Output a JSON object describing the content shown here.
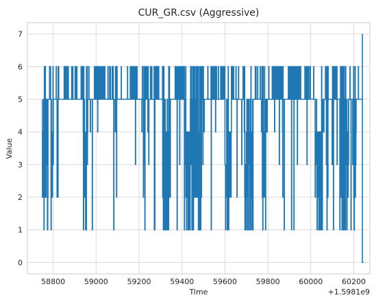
{
  "chart_data": {
    "type": "line",
    "title": "CUR_GR.csv (Aggressive)",
    "xlabel": "Time",
    "ylabel": "Value",
    "x_offset_label": "+1.5981e9",
    "xlim": [
      58680,
      60275
    ],
    "ylim": [
      -0.35,
      7.35
    ],
    "xticks": [
      "58800",
      "59000",
      "59200",
      "59400",
      "59600",
      "59800",
      "60000",
      "60200"
    ],
    "yticks": [
      "0",
      "1",
      "2",
      "3",
      "4",
      "5",
      "6",
      "7"
    ],
    "grid": true,
    "legend": "none",
    "series": [
      {
        "color": "#1f77b4",
        "x_start": 58750,
        "x_end": 60240,
        "baseline": 5,
        "dense_low_blocks": [
          [
            58750,
            58775
          ],
          [
            58790,
            58800
          ],
          [
            58940,
            58960
          ],
          [
            59310,
            59345
          ],
          [
            59410,
            59490
          ],
          [
            59600,
            59630
          ],
          [
            59690,
            59730
          ],
          [
            59770,
            59790
          ],
          [
            60020,
            60060
          ],
          [
            60135,
            60175
          ],
          [
            60195,
            60210
          ]
        ],
        "high_blocks": [
          [
            58810,
            58825
          ],
          [
            58850,
            58870
          ],
          [
            58900,
            58910
          ],
          [
            58930,
            58950
          ],
          [
            58990,
            59040
          ],
          [
            59090,
            59100
          ],
          [
            59160,
            59190
          ],
          [
            59210,
            59240
          ],
          [
            59270,
            59290
          ],
          [
            59370,
            59420
          ],
          [
            59480,
            59500
          ],
          [
            59580,
            59640
          ],
          [
            59680,
            59700
          ],
          [
            59770,
            59780
          ],
          [
            59830,
            59870
          ],
          [
            59900,
            59940
          ],
          [
            59970,
            59990
          ],
          [
            60060,
            60080
          ],
          [
            60100,
            60115
          ]
        ],
        "final_spike": {
          "x": 60240,
          "value": 7
        },
        "final_value": 0,
        "x_final": 60245
      }
    ]
  }
}
